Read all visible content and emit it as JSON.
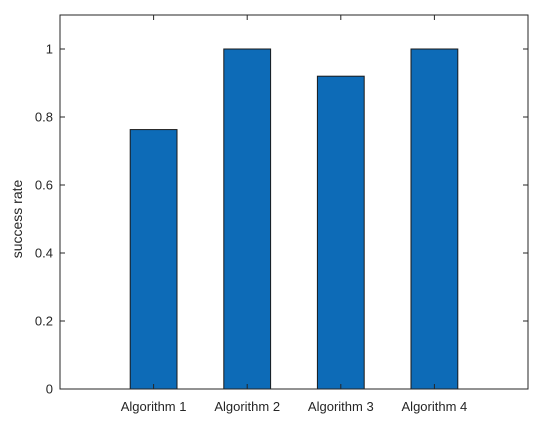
{
  "chart_data": {
    "type": "bar",
    "categories": [
      "Algorithm 1",
      "Algorithm 2",
      "Algorithm 3",
      "Algorithm 4"
    ],
    "values": [
      0.763,
      1.0,
      0.92,
      1.0
    ],
    "ylabel": "success rate",
    "ylim": [
      0,
      1.1
    ],
    "yticks": [
      0,
      0.2,
      0.4,
      0.6,
      0.8,
      1
    ],
    "ytick_labels": [
      "0",
      "0.2",
      "0.4",
      "0.6",
      "0.8",
      "1"
    ],
    "grid": false,
    "bar_color": "#0d6bb7"
  }
}
